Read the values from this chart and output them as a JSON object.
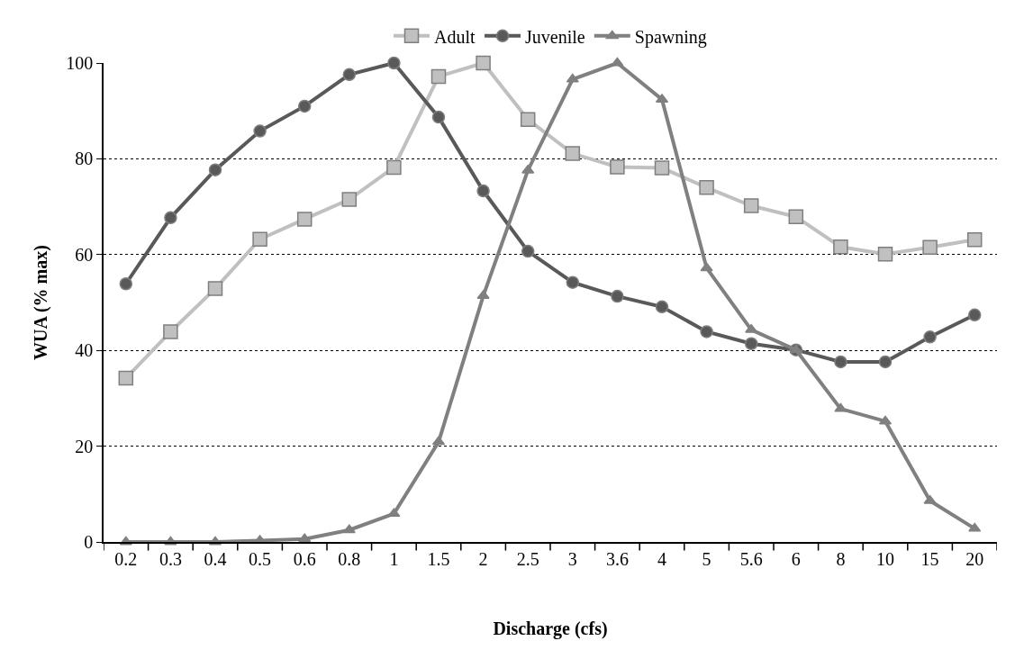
{
  "chart_data": {
    "type": "line",
    "xlabel": "Discharge (cfs)",
    "ylabel": "WUA (% max)",
    "categories": [
      "0.2",
      "0.3",
      "0.4",
      "0.5",
      "0.6",
      "0.8",
      "1",
      "1.5",
      "2",
      "2.5",
      "3",
      "3.6",
      "4",
      "5",
      "5.6",
      "6",
      "8",
      "10",
      "15",
      "20"
    ],
    "series": [
      {
        "name": "Adult",
        "color": "#c0c0c0",
        "marker": "square",
        "values": [
          34.2,
          43.9,
          52.9,
          63.2,
          67.4,
          71.5,
          78.2,
          97.2,
          100,
          88.2,
          81.1,
          78.3,
          78.1,
          74.0,
          70.2,
          67.9,
          61.6,
          60.1,
          61.5,
          63.1
        ]
      },
      {
        "name": "Juvenile",
        "color": "#595959",
        "marker": "circle",
        "values": [
          53.9,
          67.7,
          77.7,
          85.8,
          91.0,
          97.6,
          100,
          88.7,
          73.3,
          60.7,
          54.2,
          51.3,
          49.1,
          43.9,
          41.4,
          40.1,
          37.6,
          37.6,
          42.8,
          47.4
        ]
      },
      {
        "name": "Spawning",
        "color": "#808080",
        "marker": "triangle",
        "values": [
          0,
          0,
          0,
          0.3,
          0.6,
          2.5,
          5.9,
          20.9,
          51.4,
          77.6,
          96.6,
          100,
          92.4,
          57.2,
          44.3,
          40.1,
          27.8,
          25.2,
          8.6,
          2.8
        ]
      }
    ],
    "ylim": [
      0,
      100
    ],
    "yticks": [
      0,
      20,
      40,
      60,
      80,
      100
    ],
    "grid": "y",
    "legend": "top",
    "line_style": "solid"
  }
}
